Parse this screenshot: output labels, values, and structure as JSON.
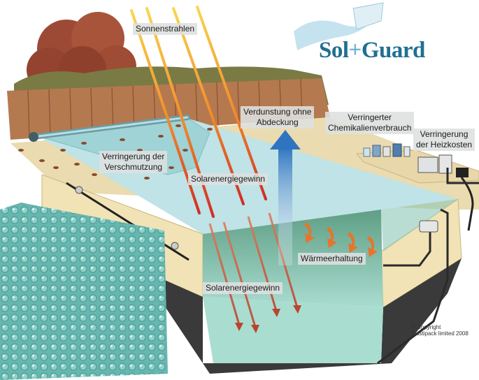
{
  "logo": {
    "part1": "Sol",
    "plus": "+",
    "part2": "Guard"
  },
  "labels": {
    "sun_rays": "Sonnenstrahlen",
    "evaporation": [
      "Verdunstung ohne",
      "Abdeckung"
    ],
    "chemicals": [
      "Verringerter",
      "Chemikalienverbrauch"
    ],
    "heating": [
      "Verringerung",
      "der Heizkosten"
    ],
    "dirt": [
      "Verringerung der",
      "Verschmutzung"
    ],
    "solar_gain_top": "Solarenergiegewinn",
    "heat_retention": "Wärmeerhaltung",
    "solar_gain_bottom": "Solarenergiegewinn"
  },
  "copyright": [
    "© Copyright",
    "Plastipack limited 2008"
  ],
  "colors": {
    "water": "#bfe3e6",
    "deep_water": "#8fc8bd",
    "deck": "#eadbb0",
    "fence": "#b5794f",
    "sun_ray_top": "#f7c948",
    "sun_ray_bottom": "#d9322b",
    "evaporation_arrow": "#3b7dc4",
    "heat_arrow": "#e8742a",
    "logo": "#1f6f92"
  }
}
